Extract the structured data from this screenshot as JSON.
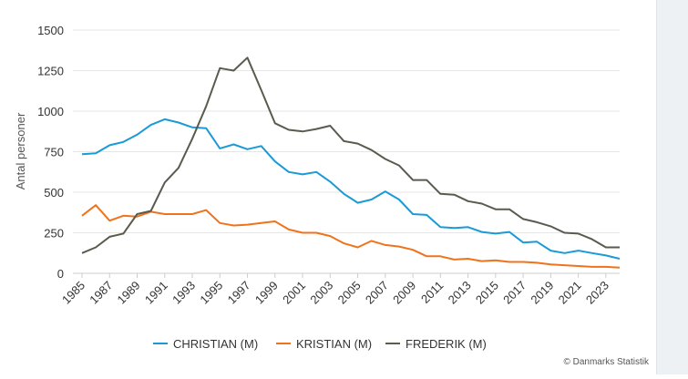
{
  "chart_data": {
    "type": "line",
    "ylabel": "Antal personer",
    "xlabel": "",
    "ylim": [
      0,
      1500
    ],
    "yticks": [
      0,
      250,
      500,
      750,
      1000,
      1250,
      1500
    ],
    "x": [
      1985,
      1986,
      1987,
      1988,
      1989,
      1990,
      1991,
      1992,
      1993,
      1994,
      1995,
      1996,
      1997,
      1998,
      1999,
      2000,
      2001,
      2002,
      2003,
      2004,
      2005,
      2006,
      2007,
      2008,
      2009,
      2010,
      2011,
      2012,
      2013,
      2014,
      2015,
      2016,
      2017,
      2018,
      2019,
      2020,
      2021,
      2022,
      2023,
      2024
    ],
    "xtick_labels": [
      "1985",
      "1987",
      "1989",
      "1991",
      "1993",
      "1995",
      "1997",
      "1999",
      "2001",
      "2003",
      "2005",
      "2007",
      "2009",
      "2011",
      "2013",
      "2015",
      "2017",
      "2019",
      "2021",
      "2023"
    ],
    "grid": true,
    "legend_position": "bottom",
    "series": [
      {
        "name": "CHRISTIAN (M)",
        "color": "#1a9ad6",
        "values": [
          735,
          740,
          790,
          810,
          855,
          915,
          950,
          930,
          900,
          895,
          770,
          795,
          765,
          785,
          690,
          625,
          610,
          625,
          565,
          490,
          435,
          455,
          505,
          455,
          365,
          360,
          285,
          280,
          285,
          255,
          245,
          255,
          190,
          195,
          140,
          125,
          140,
          125,
          110,
          90
        ]
      },
      {
        "name": "KRISTIAN (M)",
        "color": "#f0731c",
        "values": [
          355,
          420,
          325,
          355,
          350,
          380,
          365,
          365,
          365,
          390,
          310,
          295,
          300,
          310,
          320,
          270,
          250,
          250,
          230,
          185,
          160,
          200,
          175,
          165,
          145,
          105,
          105,
          85,
          90,
          75,
          80,
          70,
          70,
          65,
          55,
          50,
          45,
          40,
          40,
          35
        ]
      },
      {
        "name": "FREDERIK (M)",
        "color": "#5a5a4e",
        "values": [
          125,
          160,
          225,
          245,
          365,
          385,
          560,
          650,
          830,
          1030,
          1265,
          1250,
          1330,
          1130,
          925,
          885,
          875,
          890,
          910,
          815,
          800,
          760,
          705,
          665,
          575,
          575,
          490,
          485,
          445,
          430,
          395,
          395,
          335,
          315,
          290,
          250,
          245,
          210,
          160,
          160
        ]
      }
    ]
  },
  "credit": "© Danmarks Statistik"
}
